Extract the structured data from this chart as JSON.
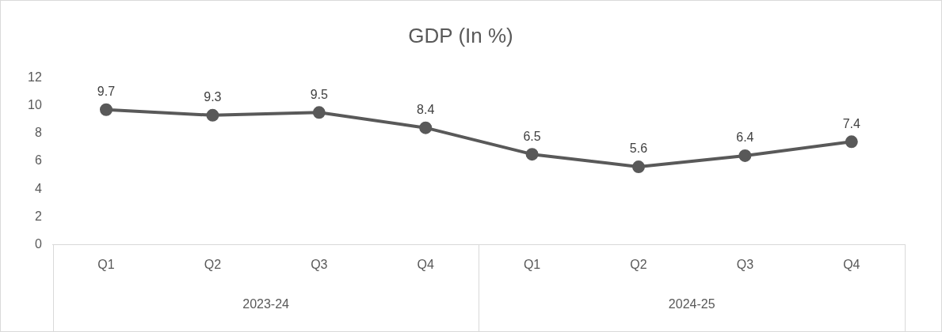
{
  "chart_data": {
    "type": "line",
    "title": "GDP (In %)",
    "categories": [
      "Q1",
      "Q2",
      "Q3",
      "Q4",
      "Q1",
      "Q2",
      "Q3",
      "Q4"
    ],
    "series": [
      {
        "color": "#595959",
        "values": [
          9.7,
          9.3,
          9.5,
          8.4,
          6.5,
          5.6,
          6.4,
          7.4
        ]
      }
    ],
    "ylim": [
      0,
      12
    ],
    "yticks": [
      0,
      2,
      4,
      6,
      8,
      10,
      12
    ],
    "marker": "circle",
    "data_labels": true,
    "annotations": [
      "2023-24",
      "2024-25"
    ]
  }
}
